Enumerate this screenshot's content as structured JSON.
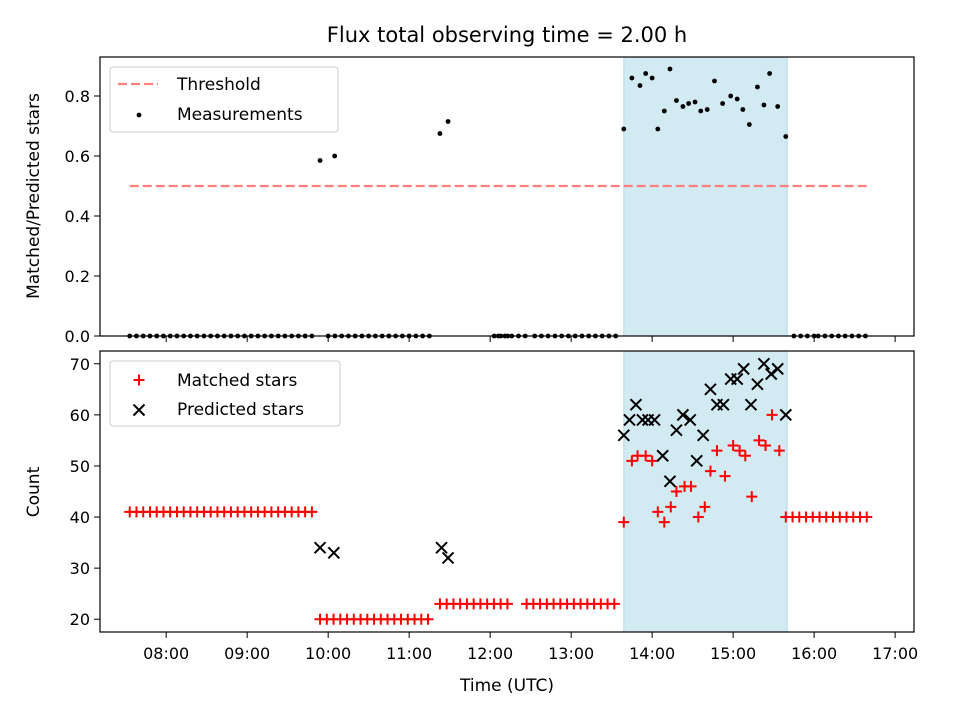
{
  "title": "Flux total observing time = 2.00 h",
  "colors": {
    "threshold": "#ff7f7f",
    "measurement": "#000000",
    "matched": "#ff0000",
    "predicted": "#000000",
    "highlight": "#add8e6"
  },
  "chart_data": [
    {
      "type": "scatter",
      "ylabel": "Matched/Predicted stars",
      "xlim": [
        7.183,
        17.233
      ],
      "ylim": [
        0,
        0.93
      ],
      "yticks": [
        0.0,
        0.2,
        0.4,
        0.6,
        0.8
      ],
      "ytick_labels": [
        "0.0",
        "0.2",
        "0.4",
        "0.6",
        "0.8"
      ],
      "highlight_span": [
        13.65,
        15.667
      ],
      "legend_position": "upper left",
      "legend": [
        "Threshold",
        "Measurements"
      ],
      "threshold": {
        "name": "Threshold",
        "value": 0.5,
        "x_range": [
          7.55,
          16.667
        ],
        "style": "dashed"
      },
      "measurements": {
        "name": "Measurements",
        "zero_segments": [
          {
            "start": 7.55,
            "end": 9.8,
            "step": 0.0833
          },
          {
            "start": 10.0,
            "end": 11.25,
            "step": 0.0833
          },
          {
            "start": 12.05,
            "end": 12.25,
            "step": 0.0833
          },
          {
            "start": 12.1,
            "end": 12.45,
            "step": 0.0833
          },
          {
            "start": 12.55,
            "end": 13.6,
            "step": 0.0833
          },
          {
            "start": 15.75,
            "end": 16.0,
            "step": 0.0833
          },
          {
            "start": 16.05,
            "end": 16.667,
            "step": 0.0833
          }
        ],
        "points": [
          [
            9.9,
            0.585
          ],
          [
            10.08,
            0.6
          ],
          [
            11.38,
            0.675
          ],
          [
            11.48,
            0.715
          ],
          [
            13.65,
            0.69
          ],
          [
            13.75,
            0.86
          ],
          [
            13.85,
            0.835
          ],
          [
            13.92,
            0.875
          ],
          [
            14.0,
            0.86
          ],
          [
            14.07,
            0.69
          ],
          [
            14.15,
            0.75
          ],
          [
            14.22,
            0.89
          ],
          [
            14.3,
            0.785
          ],
          [
            14.38,
            0.765
          ],
          [
            14.45,
            0.775
          ],
          [
            14.53,
            0.78
          ],
          [
            14.6,
            0.75
          ],
          [
            14.68,
            0.755
          ],
          [
            14.77,
            0.85
          ],
          [
            14.87,
            0.775
          ],
          [
            14.97,
            0.8
          ],
          [
            15.05,
            0.79
          ],
          [
            15.12,
            0.755
          ],
          [
            15.2,
            0.705
          ],
          [
            15.3,
            0.83
          ],
          [
            15.38,
            0.77
          ],
          [
            15.45,
            0.875
          ],
          [
            15.55,
            0.765
          ],
          [
            15.65,
            0.665
          ]
        ]
      }
    },
    {
      "type": "scatter",
      "xlabel": "Time (UTC)",
      "ylabel": "Count",
      "xlim": [
        7.183,
        17.233
      ],
      "ylim": [
        17.5,
        72.5
      ],
      "yticks": [
        20,
        30,
        40,
        50,
        60,
        70
      ],
      "ytick_labels": [
        "20",
        "30",
        "40",
        "50",
        "60",
        "70"
      ],
      "xticks": [
        8,
        9,
        10,
        11,
        12,
        13,
        14,
        15,
        16,
        17
      ],
      "xtick_labels": [
        "08:00",
        "09:00",
        "10:00",
        "11:00",
        "12:00",
        "13:00",
        "14:00",
        "15:00",
        "16:00",
        "17:00"
      ],
      "highlight_span": [
        13.65,
        15.667
      ],
      "legend_position": "upper left",
      "legend": [
        "Matched stars",
        "Predicted stars"
      ],
      "matched": {
        "name": "Matched stars",
        "runs": [
          {
            "start": 7.55,
            "end": 9.8,
            "step": 0.0833,
            "value": 41
          },
          {
            "start": 9.9,
            "end": 11.25,
            "step": 0.0833,
            "value": 20
          },
          {
            "start": 11.38,
            "end": 12.25,
            "step": 0.0833,
            "value": 23
          },
          {
            "start": 12.45,
            "end": 13.6,
            "step": 0.0833,
            "value": 23
          },
          {
            "start": 15.65,
            "end": 16.667,
            "step": 0.0833,
            "value": 40
          }
        ],
        "points": [
          [
            13.65,
            39
          ],
          [
            13.75,
            51
          ],
          [
            13.82,
            52
          ],
          [
            13.92,
            52
          ],
          [
            14.0,
            51
          ],
          [
            14.07,
            41
          ],
          [
            14.15,
            39
          ],
          [
            14.23,
            42
          ],
          [
            14.3,
            45
          ],
          [
            14.4,
            46
          ],
          [
            14.48,
            46
          ],
          [
            14.57,
            40
          ],
          [
            14.65,
            42
          ],
          [
            14.72,
            49
          ],
          [
            14.8,
            53
          ],
          [
            14.9,
            48
          ],
          [
            15.0,
            54
          ],
          [
            15.08,
            53
          ],
          [
            15.15,
            52
          ],
          [
            15.23,
            44
          ],
          [
            15.32,
            55
          ],
          [
            15.4,
            54
          ],
          [
            15.48,
            60
          ],
          [
            15.57,
            53
          ]
        ]
      },
      "predicted": {
        "name": "Predicted stars",
        "points": [
          [
            9.9,
            34
          ],
          [
            10.07,
            33
          ],
          [
            11.4,
            34
          ],
          [
            11.48,
            32
          ],
          [
            13.65,
            56
          ],
          [
            13.72,
            59
          ],
          [
            13.8,
            62
          ],
          [
            13.88,
            59
          ],
          [
            13.95,
            59
          ],
          [
            14.03,
            59
          ],
          [
            14.13,
            52
          ],
          [
            14.22,
            47
          ],
          [
            14.3,
            57
          ],
          [
            14.38,
            60
          ],
          [
            14.47,
            59
          ],
          [
            14.55,
            51
          ],
          [
            14.63,
            56
          ],
          [
            14.72,
            65
          ],
          [
            14.8,
            62
          ],
          [
            14.88,
            62
          ],
          [
            14.97,
            67
          ],
          [
            15.05,
            67
          ],
          [
            15.13,
            69
          ],
          [
            15.22,
            62
          ],
          [
            15.3,
            66
          ],
          [
            15.38,
            70
          ],
          [
            15.47,
            68
          ],
          [
            15.55,
            69
          ],
          [
            15.65,
            60
          ]
        ]
      }
    }
  ]
}
